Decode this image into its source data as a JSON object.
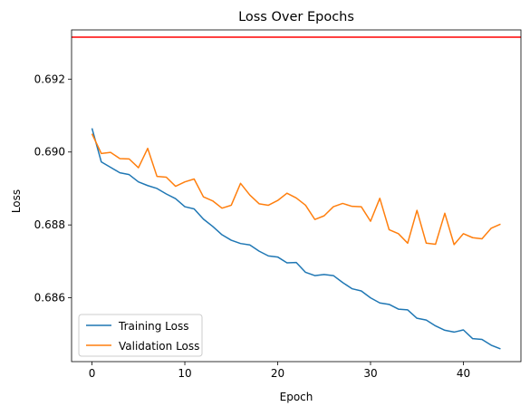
{
  "chart_data": {
    "type": "line",
    "title": "Loss Over Epochs",
    "xlabel": "Epoch",
    "ylabel": "Loss",
    "xlim": [
      -2.2,
      46.2
    ],
    "ylim": [
      0.68425,
      0.69335
    ],
    "xticks": [
      0,
      10,
      20,
      30,
      40
    ],
    "xtick_labels": [
      "0",
      "10",
      "20",
      "30",
      "40"
    ],
    "yticks": [
      0.686,
      0.688,
      0.69,
      0.692
    ],
    "ytick_labels": [
      "0.686",
      "0.688",
      "0.690",
      "0.692"
    ],
    "grid": false,
    "legend_position": "lower left",
    "x": [
      0,
      1,
      2,
      3,
      4,
      5,
      6,
      7,
      8,
      9,
      10,
      11,
      12,
      13,
      14,
      15,
      16,
      17,
      18,
      19,
      20,
      21,
      22,
      23,
      24,
      25,
      26,
      27,
      28,
      29,
      30,
      31,
      32,
      33,
      34,
      35,
      36,
      37,
      38,
      39,
      40,
      41,
      42,
      43,
      44
    ],
    "series": [
      {
        "name": "Training Loss",
        "color": "#1f77b4",
        "values": [
          0.69065,
          0.68973,
          0.68958,
          0.68943,
          0.68938,
          0.68918,
          0.68908,
          0.689,
          0.68885,
          0.68872,
          0.6885,
          0.68844,
          0.68816,
          0.68796,
          0.68773,
          0.68758,
          0.68749,
          0.68745,
          0.68728,
          0.68715,
          0.68712,
          0.68696,
          0.68697,
          0.6867,
          0.68661,
          0.68664,
          0.68661,
          0.68642,
          0.68625,
          0.68619,
          0.686,
          0.68586,
          0.68582,
          0.68569,
          0.68567,
          0.68544,
          0.68539,
          0.68523,
          0.68511,
          0.68506,
          0.68512,
          0.68488,
          0.68486,
          0.6847,
          0.6846
        ]
      },
      {
        "name": "Validation Loss",
        "color": "#ff7f0e",
        "values": [
          0.6905,
          0.68996,
          0.68999,
          0.68982,
          0.68981,
          0.68957,
          0.6901,
          0.68933,
          0.68931,
          0.68906,
          0.68918,
          0.68926,
          0.68877,
          0.68866,
          0.68846,
          0.68854,
          0.68914,
          0.68882,
          0.68858,
          0.68854,
          0.68867,
          0.68887,
          0.68874,
          0.68854,
          0.68815,
          0.68825,
          0.6885,
          0.68859,
          0.68851,
          0.6885,
          0.6881,
          0.68873,
          0.68787,
          0.68776,
          0.6875,
          0.6884,
          0.6875,
          0.68747,
          0.68832,
          0.68746,
          0.68776,
          0.68765,
          0.68762,
          0.68791,
          0.68802
        ]
      }
    ],
    "reference_line": {
      "y": 0.69315,
      "color": "#ff0000"
    }
  }
}
